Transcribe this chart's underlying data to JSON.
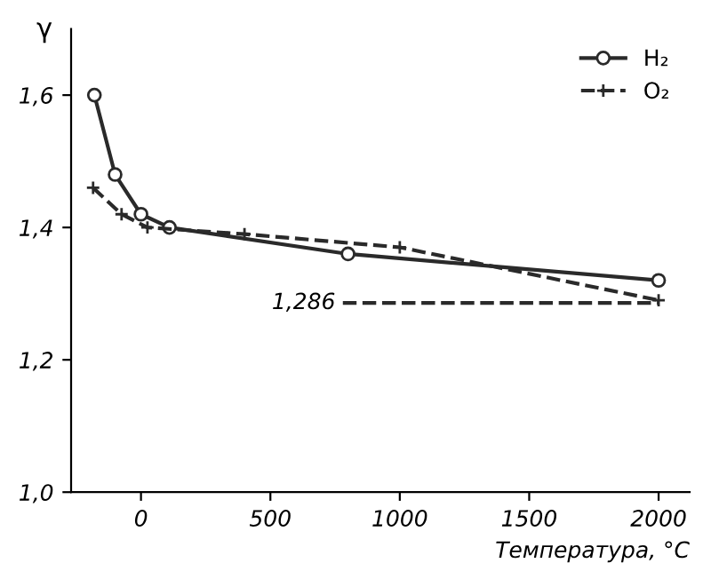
{
  "chart_data": {
    "type": "line",
    "xlabel": "Температура, °C",
    "ylabel": "γ",
    "xlim": [
      -270,
      2120
    ],
    "ylim": [
      1.0,
      1.7
    ],
    "xticks": [
      0,
      500,
      1000,
      1500,
      2000
    ],
    "yticks": [
      {
        "value": 1.0,
        "label": "1,0"
      },
      {
        "value": 1.2,
        "label": "1,2"
      },
      {
        "value": 1.4,
        "label": "1,4"
      },
      {
        "value": 1.6,
        "label": "1,6"
      }
    ],
    "grid": false,
    "legend": "top right",
    "series": [
      {
        "name": "H₂",
        "color": "#2a2a2a",
        "marker": "circle",
        "line_style": "solid",
        "x": [
          -180,
          -100,
          0,
          110,
          800,
          2000
        ],
        "values": [
          1.6,
          1.48,
          1.42,
          1.4,
          1.36,
          1.32
        ]
      },
      {
        "name": "O₂",
        "color": "#2a2a2a",
        "marker": "cross",
        "line_style": "dashed",
        "x": [
          -185,
          -75,
          25,
          400,
          1000,
          2000
        ],
        "values": [
          1.46,
          1.42,
          1.4,
          1.39,
          1.37,
          1.29
        ]
      },
      {
        "color": "#2a2a2a",
        "marker": "none",
        "line_style": "dashed",
        "x": [
          780,
          2000
        ],
        "values": [
          1.286,
          1.286
        ]
      }
    ],
    "annotations": [
      {
        "text": "1,286",
        "x": 780,
        "y": 1.286
      }
    ]
  }
}
